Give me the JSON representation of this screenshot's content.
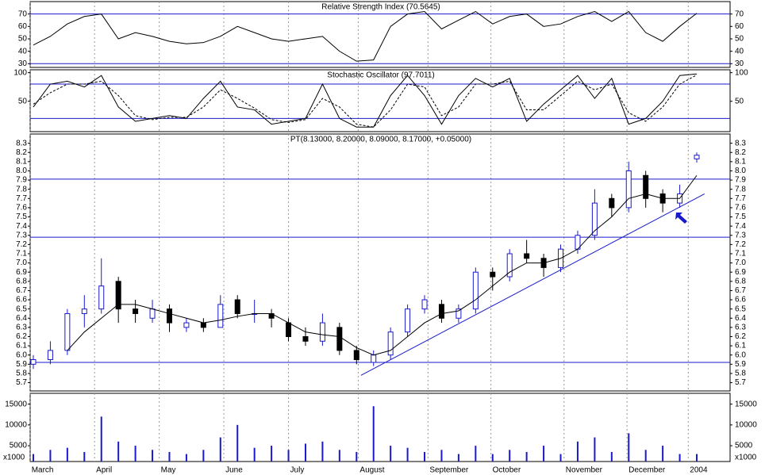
{
  "chart_data": [
    {
      "type": "line",
      "title": "Relative Strength Index (70.5645)",
      "x": [
        0,
        1,
        2,
        3,
        4,
        5,
        6,
        7,
        8,
        9,
        10,
        11,
        12,
        13,
        14,
        15,
        16,
        17,
        18,
        19,
        20,
        21,
        22,
        23,
        24,
        25,
        26,
        27,
        28,
        29,
        30,
        31,
        32,
        33,
        34,
        35,
        36,
        37,
        38,
        39
      ],
      "series": [
        {
          "color": "#000000",
          "style": "solid",
          "values": [
            45,
            52,
            62,
            68,
            70,
            50,
            55,
            52,
            48,
            46,
            47,
            52,
            60,
            55,
            50,
            48,
            50,
            52,
            40,
            32,
            33,
            60,
            70,
            72,
            58,
            65,
            72,
            62,
            68,
            70,
            60,
            62,
            68,
            72,
            64,
            72,
            55,
            48,
            60,
            70.56
          ]
        }
      ],
      "ylim": [
        27,
        80
      ],
      "yticks": [
        30,
        40,
        50,
        60,
        70
      ],
      "hlines": [
        70,
        30
      ],
      "hline_color": "#1a1acc"
    },
    {
      "type": "line",
      "title": "Stochastic Oscillator (97.7011)",
      "x": [
        0,
        1,
        2,
        3,
        4,
        5,
        6,
        7,
        8,
        9,
        10,
        11,
        12,
        13,
        14,
        15,
        16,
        17,
        18,
        19,
        20,
        21,
        22,
        23,
        24,
        25,
        26,
        27,
        28,
        29,
        30,
        31,
        32,
        33,
        34,
        35,
        36,
        37,
        38,
        39
      ],
      "series": [
        {
          "color": "#000000",
          "style": "solid",
          "values": [
            40,
            80,
            85,
            75,
            95,
            40,
            15,
            20,
            25,
            20,
            55,
            85,
            40,
            35,
            10,
            15,
            20,
            80,
            20,
            5,
            5,
            60,
            95,
            60,
            10,
            60,
            90,
            75,
            90,
            15,
            45,
            70,
            95,
            55,
            90,
            10,
            20,
            50,
            95,
            97.7
          ]
        },
        {
          "color": "#000000",
          "style": "dashed",
          "values": [
            45,
            65,
            80,
            80,
            85,
            60,
            25,
            18,
            22,
            22,
            40,
            70,
            55,
            38,
            18,
            13,
            18,
            55,
            40,
            10,
            5,
            35,
            80,
            75,
            25,
            40,
            80,
            80,
            85,
            35,
            35,
            60,
            85,
            70,
            80,
            30,
            15,
            40,
            80,
            96
          ]
        }
      ],
      "ylim": [
        -3,
        105
      ],
      "yticks": [
        50,
        100
      ],
      "hlines": [
        80,
        20
      ],
      "hline_color": "#1a1acc"
    },
    {
      "type": "candlestick",
      "title": "PT(8.13000, 8.20000, 8.09000, 8.17000, +0.05000)",
      "x": [
        0,
        1,
        2,
        3,
        4,
        5,
        6,
        7,
        8,
        9,
        10,
        11,
        12,
        13,
        14,
        15,
        16,
        17,
        18,
        19,
        20,
        21,
        22,
        23,
        24,
        25,
        26,
        27,
        28,
        29,
        30,
        31,
        32,
        33,
        34,
        35,
        36,
        37,
        38,
        39
      ],
      "open": [
        5.9,
        5.95,
        6.05,
        6.45,
        6.5,
        6.8,
        6.5,
        6.4,
        6.5,
        6.3,
        6.35,
        6.3,
        6.6,
        6.45,
        6.45,
        6.35,
        6.2,
        6.15,
        6.3,
        6.05,
        5.92,
        6.0,
        6.25,
        6.5,
        6.55,
        6.4,
        6.5,
        6.9,
        6.85,
        7.1,
        7.05,
        6.95,
        7.15,
        7.3,
        7.7,
        7.6,
        7.95,
        7.75,
        7.65,
        8.13
      ],
      "high": [
        6.0,
        6.15,
        6.5,
        6.65,
        7.05,
        6.85,
        6.6,
        6.6,
        6.55,
        6.4,
        6.4,
        6.65,
        6.65,
        6.6,
        6.5,
        6.4,
        6.3,
        6.45,
        6.35,
        6.1,
        6.05,
        6.3,
        6.55,
        6.65,
        6.6,
        6.55,
        6.95,
        6.95,
        7.15,
        7.25,
        7.1,
        7.2,
        7.35,
        7.8,
        7.75,
        8.1,
        8.0,
        7.8,
        7.85,
        8.2
      ],
      "low": [
        5.85,
        5.9,
        6.0,
        6.3,
        6.45,
        6.35,
        6.35,
        6.35,
        6.25,
        6.25,
        6.25,
        6.3,
        6.4,
        6.35,
        6.3,
        6.15,
        6.1,
        6.1,
        6.0,
        5.9,
        5.88,
        5.95,
        6.2,
        6.45,
        6.35,
        6.35,
        6.45,
        6.7,
        6.8,
        7.0,
        6.85,
        6.9,
        7.1,
        7.25,
        7.5,
        7.55,
        7.6,
        7.55,
        7.6,
        8.09
      ],
      "close": [
        5.95,
        6.05,
        6.45,
        6.5,
        6.75,
        6.5,
        6.45,
        6.5,
        6.35,
        6.35,
        6.3,
        6.55,
        6.45,
        6.45,
        6.4,
        6.2,
        6.15,
        6.35,
        6.05,
        5.95,
        6.0,
        6.25,
        6.5,
        6.6,
        6.4,
        6.5,
        6.9,
        6.85,
        7.1,
        7.05,
        6.95,
        7.15,
        7.3,
        7.65,
        7.6,
        8.0,
        7.7,
        7.65,
        7.75,
        8.17
      ],
      "up_color": "#ffffff",
      "down_color": "#000000",
      "edge_color": "#1a1acc",
      "moving_average": [
        null,
        null,
        6.05,
        6.25,
        6.4,
        6.55,
        6.55,
        6.5,
        6.45,
        6.4,
        6.35,
        6.38,
        6.42,
        6.45,
        6.45,
        6.35,
        6.25,
        6.22,
        6.2,
        6.08,
        6.0,
        6.05,
        6.2,
        6.35,
        6.45,
        6.48,
        6.6,
        6.75,
        6.9,
        7.0,
        7.0,
        7.05,
        7.15,
        7.35,
        7.5,
        7.7,
        7.75,
        7.7,
        7.7,
        7.95
      ],
      "trendline": {
        "x": [
          19.26,
          39.46
        ],
        "y": [
          5.78,
          7.75
        ]
      },
      "ylim": [
        5.61,
        8.4
      ],
      "yticks": [
        5.7,
        5.8,
        5.9,
        {
          "value": 6,
          "label": "6.0"
        },
        6.1,
        6.2,
        6.3,
        6.4,
        6.5,
        6.6,
        6.7,
        6.8,
        6.9,
        {
          "value": 7,
          "label": "7.0"
        },
        7.1,
        7.2,
        7.3,
        7.4,
        7.5,
        7.6,
        7.7,
        7.8,
        7.9,
        {
          "value": 8,
          "label": "8.0"
        },
        8.1,
        8.2,
        8.3
      ],
      "hlines": [
        7.91,
        7.28,
        5.92
      ],
      "hline_color": "#1a1acc"
    },
    {
      "type": "bar",
      "unit_label": "x1000",
      "color": "#1a1acc",
      "x": [
        0,
        1,
        2,
        3,
        4,
        5,
        6,
        7,
        8,
        9,
        10,
        11,
        12,
        13,
        14,
        15,
        16,
        17,
        18,
        19,
        20,
        21,
        22,
        23,
        24,
        25,
        26,
        27,
        28,
        29,
        30,
        31,
        32,
        33,
        34,
        35,
        36,
        37,
        38,
        39
      ],
      "values": [
        3000,
        4000,
        4500,
        3500,
        12000,
        6000,
        5000,
        4000,
        3500,
        3000,
        4000,
        7000,
        10000,
        4500,
        5000,
        4000,
        5500,
        6000,
        4000,
        3500,
        14500,
        5000,
        4500,
        3500,
        4000,
        3000,
        5000,
        3000,
        4000,
        3500,
        5000,
        3000,
        6000,
        7000,
        3500,
        8000,
        4000,
        5000,
        3000,
        3000
      ],
      "ylim": [
        1200,
        17600
      ],
      "yticks": [
        5000,
        10000,
        15000
      ],
      "xticks": [
        {
          "value": -0.2,
          "label": "March"
        },
        {
          "value": 3.6,
          "label": "April"
        },
        {
          "value": 7.4,
          "label": "May"
        },
        {
          "value": 11.2,
          "label": "June"
        },
        {
          "value": 15.0,
          "label": "July"
        },
        {
          "value": 19.1,
          "label": "August"
        },
        {
          "value": 23.2,
          "label": "September"
        },
        {
          "value": 26.9,
          "label": "October"
        },
        {
          "value": 31.2,
          "label": "November"
        },
        {
          "value": 34.9,
          "label": "December"
        },
        {
          "value": 38.5,
          "label": "2004"
        }
      ]
    }
  ]
}
